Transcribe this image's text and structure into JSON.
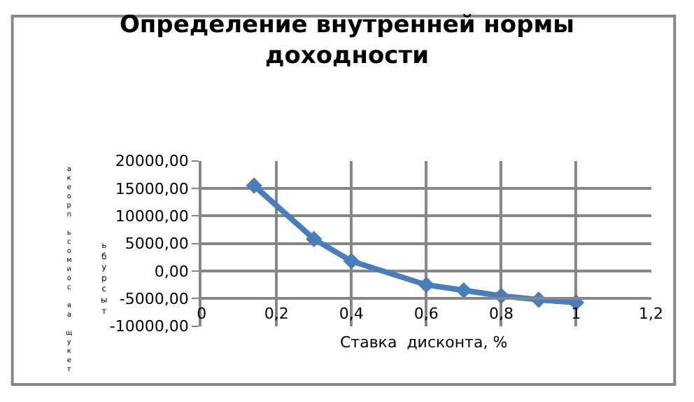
{
  "chart_data": {
    "type": "line",
    "title": "Определение внутренней нормы доходности",
    "xlabel": "Ставка  дисконта, %",
    "ylabel": "акеорп ьсомиос яа щукет",
    "annotations": [
      "ьбурсыт"
    ],
    "x": [
      0.14,
      0.3,
      0.4,
      0.6,
      0.7,
      0.8,
      0.9,
      1.0
    ],
    "series": [
      {
        "color": "#4a7ebb",
        "values": [
          15500,
          5800,
          1800,
          -2500,
          -3500,
          -4500,
          -5200,
          -5700
        ]
      }
    ],
    "xlim": [
      0,
      1.2
    ],
    "xticks": [
      {
        "value": 0,
        "label": "0"
      },
      {
        "value": 0.2,
        "label": "0,2"
      },
      {
        "value": 0.4,
        "label": "0,4"
      },
      {
        "value": 0.6,
        "label": "0,6"
      },
      {
        "value": 0.8,
        "label": "0,8"
      },
      {
        "value": 1,
        "label": "1"
      },
      {
        "value": 1.2,
        "label": "1,2"
      }
    ],
    "ylim": [
      -10000,
      20000
    ],
    "yticks": [
      {
        "value": -10000,
        "label": "-10000,00"
      },
      {
        "value": -5000,
        "label": "-5000,00"
      },
      {
        "value": 0,
        "label": "0,00"
      },
      {
        "value": 5000,
        "label": "5000,00"
      },
      {
        "value": 10000,
        "label": "10000,00"
      },
      {
        "value": 15000,
        "label": "15000,00"
      },
      {
        "value": 20000,
        "label": "20000,00"
      }
    ],
    "grid": true,
    "marker": "diamond",
    "line_style": "solid"
  }
}
